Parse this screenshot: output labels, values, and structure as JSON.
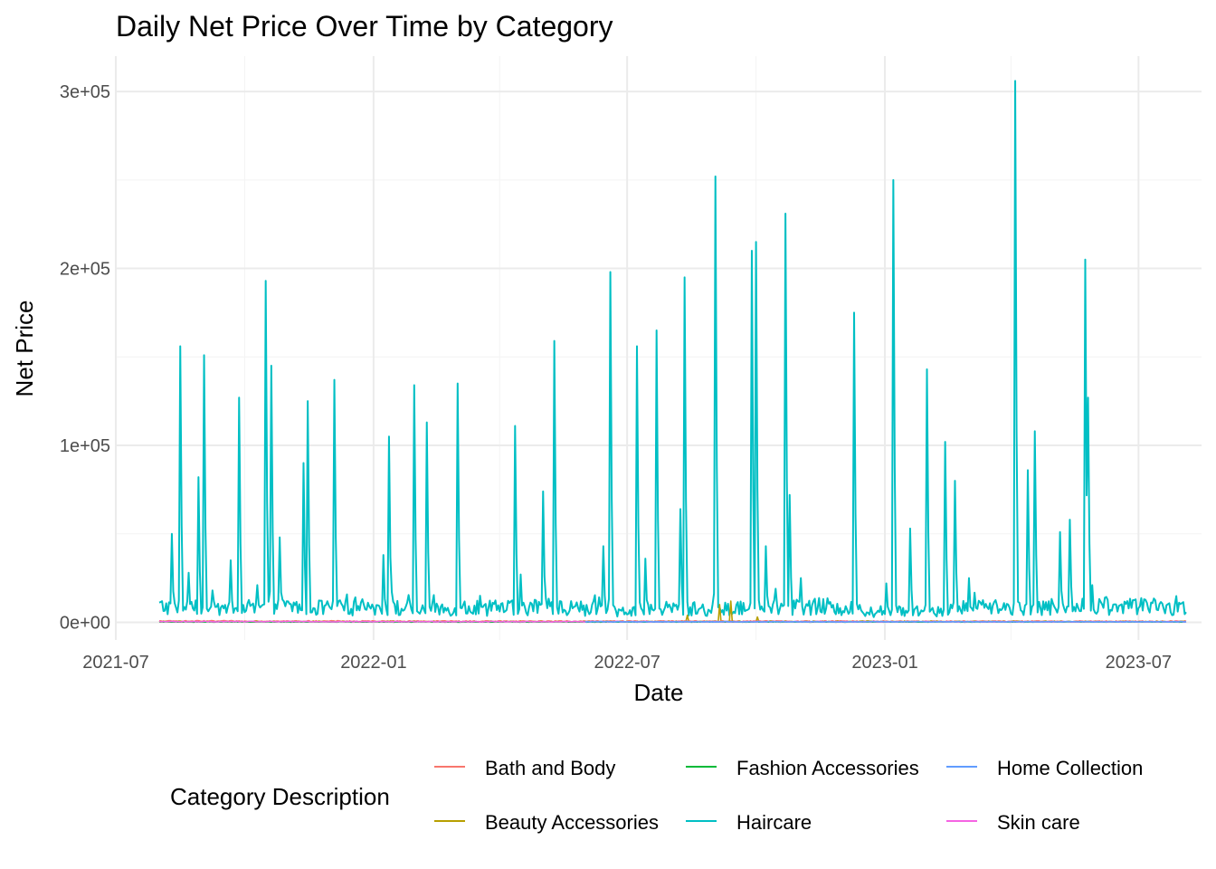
{
  "chart_data": {
    "type": "line",
    "title": "Daily Net Price Over Time by Category",
    "xlabel": "Date",
    "ylabel": "Net Price",
    "xlim": [
      "2021-07-01",
      "2023-08-15"
    ],
    "ylim": [
      -10000,
      320000
    ],
    "x_ticks": [
      "2021-07",
      "2022-01",
      "2022-07",
      "2023-01",
      "2023-07"
    ],
    "y_ticks": [
      0,
      100000,
      200000,
      300000
    ],
    "y_tick_labels": [
      "0e+00",
      "1e+05",
      "2e+05",
      "3e+05"
    ],
    "grid": true,
    "legend": {
      "title": "Category Description",
      "position": "bottom",
      "entries": [
        "Bath and Body",
        "Beauty Accessories",
        "Fashion Accessories",
        "Haircare",
        "Home Collection",
        "Skin care"
      ]
    },
    "series": [
      {
        "name": "Haircare",
        "color": "#00BFC4",
        "baseline": [
          [
            "2021-08-01",
            9000
          ],
          [
            "2021-09-01",
            8000
          ],
          [
            "2021-10-01",
            7000
          ],
          [
            "2021-11-01",
            9000
          ],
          [
            "2021-12-01",
            8000
          ],
          [
            "2022-01-01",
            9000
          ],
          [
            "2022-02-01",
            7000
          ],
          [
            "2022-03-01",
            8000
          ],
          [
            "2022-04-01",
            8000
          ],
          [
            "2022-05-01",
            9000
          ],
          [
            "2022-06-01",
            8000
          ],
          [
            "2022-07-01",
            7000
          ],
          [
            "2022-08-01",
            8000
          ],
          [
            "2022-09-01",
            7000
          ],
          [
            "2022-10-01",
            8000
          ],
          [
            "2022-11-01",
            9000
          ],
          [
            "2022-12-01",
            8000
          ],
          [
            "2023-01-01",
            6000
          ],
          [
            "2023-02-01",
            7000
          ],
          [
            "2023-03-01",
            8000
          ],
          [
            "2023-04-01",
            9000
          ],
          [
            "2023-05-01",
            8000
          ],
          [
            "2023-06-01",
            9000
          ],
          [
            "2023-07-01",
            9000
          ],
          [
            "2023-08-04",
            8000
          ]
        ],
        "peaks": [
          [
            "2021-08-10",
            50000
          ],
          [
            "2021-08-16",
            156000
          ],
          [
            "2021-08-22",
            28000
          ],
          [
            "2021-08-29",
            82000
          ],
          [
            "2021-09-02",
            151000
          ],
          [
            "2021-09-08",
            18000
          ],
          [
            "2021-09-21",
            35000
          ],
          [
            "2021-09-27",
            127000
          ],
          [
            "2021-10-10",
            21000
          ],
          [
            "2021-10-16",
            193000
          ],
          [
            "2021-10-20",
            145000
          ],
          [
            "2021-10-26",
            48000
          ],
          [
            "2021-11-12",
            90000
          ],
          [
            "2021-11-15",
            125000
          ],
          [
            "2021-12-04",
            137000
          ],
          [
            "2022-01-08",
            38000
          ],
          [
            "2022-01-12",
            105000
          ],
          [
            "2022-01-30",
            134000
          ],
          [
            "2022-02-08",
            113000
          ],
          [
            "2022-03-02",
            135000
          ],
          [
            "2022-04-12",
            111000
          ],
          [
            "2022-04-16",
            27000
          ],
          [
            "2022-05-02",
            74000
          ],
          [
            "2022-05-10",
            159000
          ],
          [
            "2022-06-14",
            43000
          ],
          [
            "2022-06-19",
            198000
          ],
          [
            "2022-07-08",
            156000
          ],
          [
            "2022-07-14",
            36000
          ],
          [
            "2022-07-22",
            165000
          ],
          [
            "2022-08-08",
            64000
          ],
          [
            "2022-08-11",
            195000
          ],
          [
            "2022-09-02",
            252000
          ],
          [
            "2022-09-28",
            210000
          ],
          [
            "2022-10-01",
            215000
          ],
          [
            "2022-10-08",
            43000
          ],
          [
            "2022-10-22",
            231000
          ],
          [
            "2022-10-25",
            72000
          ],
          [
            "2022-11-02",
            25000
          ],
          [
            "2022-12-10",
            175000
          ],
          [
            "2023-01-02",
            22000
          ],
          [
            "2023-01-07",
            250000
          ],
          [
            "2023-01-19",
            53000
          ],
          [
            "2023-01-31",
            143000
          ],
          [
            "2023-02-13",
            102000
          ],
          [
            "2023-02-20",
            80000
          ],
          [
            "2023-03-02",
            25000
          ],
          [
            "2023-04-04",
            306000
          ],
          [
            "2023-04-13",
            86000
          ],
          [
            "2023-04-18",
            108000
          ],
          [
            "2023-05-06",
            51000
          ],
          [
            "2023-05-13",
            58000
          ],
          [
            "2023-05-24",
            205000
          ],
          [
            "2023-05-26",
            127000
          ],
          [
            "2023-05-29",
            21000
          ]
        ]
      },
      {
        "name": "Beauty Accessories",
        "color": "#B79F00",
        "baseline": [
          [
            "2021-08-01",
            500
          ],
          [
            "2023-08-04",
            500
          ]
        ],
        "peaks": [
          [
            "2022-08-13",
            4000
          ],
          [
            "2022-09-05",
            10000
          ],
          [
            "2022-09-13",
            12000
          ],
          [
            "2022-10-02",
            3000
          ]
        ]
      },
      {
        "name": "Bath and Body",
        "color": "#F8766D",
        "baseline": [
          [
            "2021-08-01",
            600
          ],
          [
            "2023-08-04",
            500
          ]
        ],
        "peaks": []
      },
      {
        "name": "Fashion Accessories",
        "color": "#00BA38",
        "baseline": [
          [
            "2021-08-01",
            200
          ],
          [
            "2023-08-04",
            200
          ]
        ],
        "peaks": []
      },
      {
        "name": "Home Collection",
        "color": "#619CFF",
        "baseline": [
          [
            "2022-06-01",
            300
          ],
          [
            "2023-08-04",
            300
          ]
        ],
        "peaks": []
      },
      {
        "name": "Skin care",
        "color": "#F564E3",
        "baseline": [
          [
            "2021-08-01",
            400
          ],
          [
            "2023-08-04",
            300
          ]
        ],
        "peaks": []
      }
    ]
  }
}
